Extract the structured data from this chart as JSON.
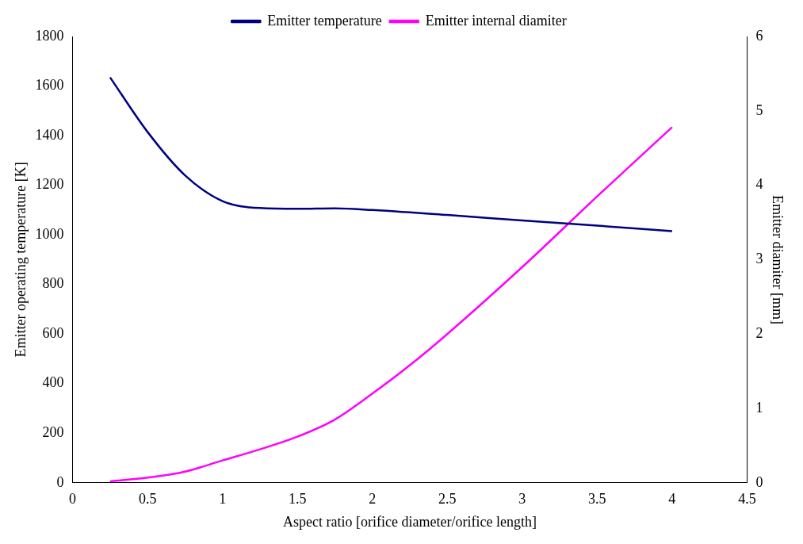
{
  "chart_data": {
    "type": "line",
    "xlabel": "Aspect ratio [orifice diameter/orifice length]",
    "ylabel": "Emitter operating temperature [K]",
    "y2label": "Emitter diamiter [mm]",
    "xlim": [
      0,
      4.5
    ],
    "xticks": [
      0,
      0.5,
      1,
      1.5,
      2,
      2.5,
      3,
      3.5,
      4,
      4.5
    ],
    "ylim": [
      0,
      1800
    ],
    "yticks": [
      0,
      200,
      400,
      600,
      800,
      1000,
      1200,
      1400,
      1600,
      1800
    ],
    "y2lim": [
      0,
      6
    ],
    "y2ticks": [
      0,
      1,
      2,
      3,
      4,
      5,
      6
    ],
    "grid": false,
    "legend": "top",
    "marker": "none",
    "line_style": "solid",
    "series": [
      {
        "name": "Emitter temperature",
        "color": "#000080",
        "x": [
          0.25,
          0.5,
          0.75,
          1,
          1.25,
          1.5,
          1.75,
          2,
          2.5,
          3,
          3.5,
          4
        ],
        "values": [
          1635,
          1415,
          1240,
          1136,
          1108,
          1105,
          1107,
          1100,
          1080,
          1058,
          1037,
          1015
        ]
      },
      {
        "name": "Emitter internal diamiter",
        "color": "#ff00ff",
        "axis": "y2",
        "x": [
          0.25,
          0.5,
          0.75,
          1,
          1.25,
          1.5,
          1.75,
          2,
          2.25,
          2.5,
          3,
          3.5,
          4
        ],
        "values": [
          0.02,
          0.07,
          0.15,
          0.3,
          0.45,
          0.62,
          0.85,
          1.2,
          1.58,
          2.0,
          2.9,
          3.85,
          4.78
        ]
      }
    ]
  }
}
